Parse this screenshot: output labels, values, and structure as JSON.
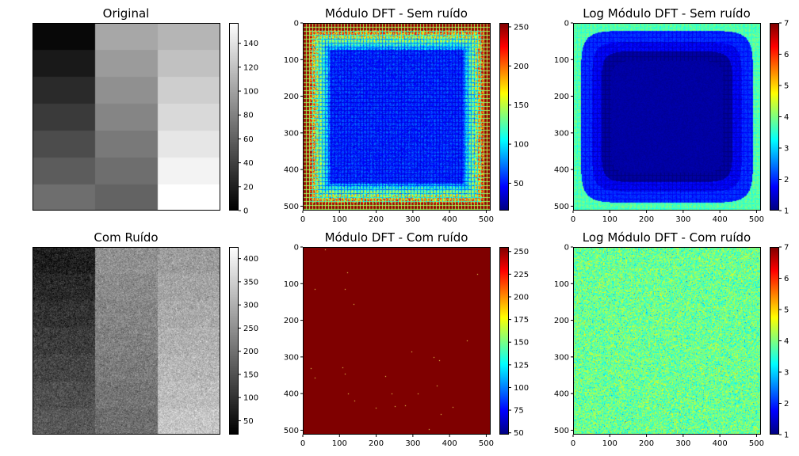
{
  "chart_data": [
    {
      "type": "heatmap",
      "title": "Original",
      "colormap": "gray",
      "axes_visible": false,
      "grid_rows": 7,
      "grid_cols": 3,
      "values": [
        [
          5,
          103,
          112
        ],
        [
          16,
          96,
          119
        ],
        [
          26,
          89,
          127
        ],
        [
          36,
          82,
          134
        ],
        [
          47,
          75,
          142
        ],
        [
          57,
          68,
          150
        ],
        [
          68,
          61,
          157
        ]
      ],
      "colorbar": {
        "min": 0,
        "max": 157,
        "ticks": [
          0,
          20,
          40,
          60,
          80,
          100,
          120,
          140
        ],
        "tick_labels": [
          "0",
          "20",
          "40",
          "60",
          "80",
          "100",
          "120",
          "140"
        ]
      }
    },
    {
      "type": "heatmap",
      "title": "Módulo DFT - Sem ruído",
      "colormap": "jet",
      "axes_visible": true,
      "pattern": "frame",
      "image_size": 512,
      "xlim": [
        0,
        512
      ],
      "ylim": [
        512,
        0
      ],
      "xticks": [
        0,
        100,
        200,
        300,
        400,
        500
      ],
      "yticks": [
        0,
        100,
        200,
        300,
        400,
        500
      ],
      "colorbar": {
        "min": 15,
        "max": 255,
        "ticks": [
          50,
          100,
          150,
          200,
          250
        ],
        "tick_labels": [
          "50",
          "100",
          "150",
          "200",
          "250"
        ]
      }
    },
    {
      "type": "heatmap",
      "title": "Log Módulo DFT - Sem ruído",
      "colormap": "jet",
      "axes_visible": true,
      "pattern": "log-frame",
      "image_size": 512,
      "xlim": [
        0,
        512
      ],
      "ylim": [
        512,
        0
      ],
      "xticks": [
        0,
        100,
        200,
        300,
        400,
        500
      ],
      "yticks": [
        0,
        100,
        200,
        300,
        400,
        500
      ],
      "colorbar": {
        "min": 1,
        "max": 7,
        "ticks": [
          1,
          2,
          3,
          4,
          5,
          6,
          7
        ],
        "tick_labels": [
          "1",
          "2",
          "3",
          "4",
          "5",
          "6",
          "7"
        ]
      }
    },
    {
      "type": "heatmap",
      "title": "Com Ruído",
      "colormap": "gray",
      "axes_visible": false,
      "grid_rows": 7,
      "grid_cols": 3,
      "noise": true,
      "values": [
        [
          70,
          250,
          270
        ],
        [
          85,
          240,
          280
        ],
        [
          100,
          232,
          290
        ],
        [
          115,
          225,
          300
        ],
        [
          130,
          215,
          310
        ],
        [
          145,
          205,
          320
        ],
        [
          160,
          195,
          335
        ]
      ],
      "colorbar": {
        "min": 20,
        "max": 425,
        "ticks": [
          50,
          100,
          150,
          200,
          250,
          300,
          350,
          400
        ],
        "tick_labels": [
          "50",
          "100",
          "150",
          "200",
          "250",
          "300",
          "350",
          "400"
        ]
      }
    },
    {
      "type": "heatmap",
      "title": "Módulo DFT - Com ruído",
      "colormap": "jet",
      "axes_visible": true,
      "pattern": "saturated",
      "image_size": 512,
      "xlim": [
        0,
        512
      ],
      "ylim": [
        512,
        0
      ],
      "xticks": [
        0,
        100,
        200,
        300,
        400,
        500
      ],
      "yticks": [
        0,
        100,
        200,
        300,
        400,
        500
      ],
      "colorbar": {
        "min": 48,
        "max": 255,
        "ticks": [
          50,
          75,
          100,
          125,
          150,
          175,
          200,
          225,
          250
        ],
        "tick_labels": [
          "50",
          "75",
          "100",
          "125",
          "150",
          "175",
          "200",
          "225",
          "250"
        ]
      }
    },
    {
      "type": "heatmap",
      "title": "Log Módulo DFT - Com ruído",
      "colormap": "jet",
      "axes_visible": true,
      "pattern": "noise",
      "image_size": 512,
      "xlim": [
        0,
        512
      ],
      "ylim": [
        512,
        0
      ],
      "xticks": [
        0,
        100,
        200,
        300,
        400,
        500
      ],
      "yticks": [
        0,
        100,
        200,
        300,
        400,
        500
      ],
      "colorbar": {
        "min": 1,
        "max": 7,
        "ticks": [
          1,
          2,
          3,
          4,
          5,
          6,
          7
        ],
        "tick_labels": [
          "1",
          "2",
          "3",
          "4",
          "5",
          "6",
          "7"
        ]
      }
    }
  ]
}
